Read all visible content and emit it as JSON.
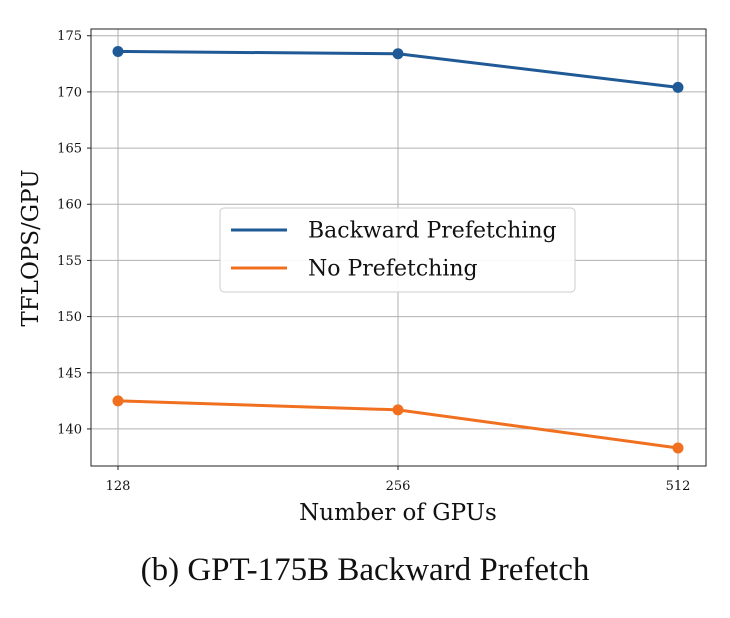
{
  "caption": "(b) GPT-175B Backward Prefetch",
  "chart_data": {
    "type": "line",
    "x": [
      128,
      256,
      512
    ],
    "x_ticks": [
      "128",
      "256",
      "512"
    ],
    "xlabel": "Number of GPUs",
    "ylabel": "TFLOPS/GPU",
    "ylim": [
      136.7,
      175.6
    ],
    "y_ticks": [
      140,
      145,
      150,
      155,
      160,
      165,
      170,
      175
    ],
    "grid": true,
    "legend_position": "center",
    "series": [
      {
        "name": "Backward Prefetching",
        "color": "#1f5a96",
        "values": [
          173.6,
          173.4,
          170.4
        ]
      },
      {
        "name": "No Prefetching",
        "color": "#f07020",
        "values": [
          142.5,
          141.7,
          138.3
        ]
      }
    ]
  }
}
